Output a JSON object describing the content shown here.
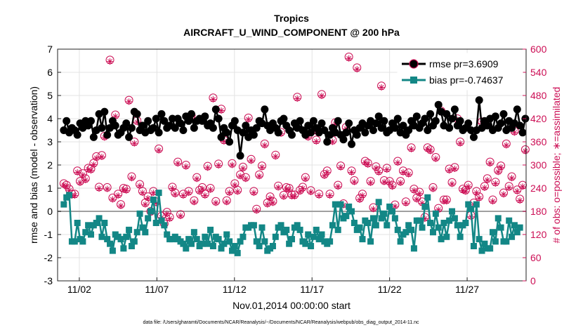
{
  "chart_data": {
    "type": "line",
    "title": "Tropics",
    "subtitle": "AIRCRAFT_U_WIND_COMPONENT @ 200 hPa",
    "xlabel": "Nov.01,2014 00:00:00 start",
    "ylabel_left": "rmse and bias (model - observation)",
    "ylabel_right": "# of obs: o=possible; ∗=assimilated",
    "ylim_left": [
      -3,
      7
    ],
    "ylim_right": [
      0,
      600
    ],
    "xlim": [
      0.6,
      30.8
    ],
    "x_tick_values": [
      2,
      7,
      12,
      17,
      22,
      27
    ],
    "x_tick_labels": [
      "11/02",
      "11/07",
      "11/12",
      "11/17",
      "11/22",
      "11/27"
    ],
    "y_left_ticks": [
      "-3",
      "-2",
      "-1",
      "0",
      "1",
      "2",
      "3",
      "4",
      "5",
      "6",
      "7"
    ],
    "y_right_ticks": [
      "0",
      "60",
      "120",
      "180",
      "240",
      "300",
      "360",
      "420",
      "480",
      "540",
      "600"
    ],
    "zero_line": 0,
    "footer": "data file: /Users/gharamti/Documents/NCAR/Reanalysis/~/Documents/NCAR/Reanalysis/webpub/obs_diag_output_2014-11.nc",
    "legend_position": "top-right",
    "legend": [
      "rmse pr=3.6909",
      "bias pr=-0.74637"
    ],
    "colors": {
      "rmse": "#000000",
      "bias": "#138786",
      "obs": "#cc0f55",
      "zero": "#a0a0a0"
    },
    "series": [
      {
        "name": "rmse pr=3.6909",
        "values": [
          3.5,
          3.9,
          3.4,
          3.6,
          3.5,
          3.3,
          3.8,
          3.6,
          3.9,
          3.7,
          3.9,
          3.2,
          3.5,
          4.2,
          3.6,
          4.3,
          3.3,
          3.6,
          3.9,
          3.7,
          3.3,
          3.4,
          3.6,
          3.8,
          3.2,
          3.6,
          4.3,
          4.2,
          3.5,
          3.7,
          3.4,
          3.9,
          3.5,
          3.6,
          4.0,
          3.4,
          4.2,
          3.9,
          3.6,
          3.7,
          4.0,
          3.6,
          4.0,
          3.8,
          3.5,
          4.1,
          3.9,
          4.2,
          3.6,
          3.9,
          4.0,
          3.9,
          4.1,
          3.7,
          3.8,
          3.6,
          4.4,
          4.0,
          3.2,
          3.6,
          3.4,
          3.0,
          3.7,
          3.9,
          3.5,
          2.4,
          3.4,
          3.7,
          3.2,
          3.5,
          3.3,
          3.6,
          3.9,
          3.8,
          4.4,
          3.7,
          3.5,
          3.8,
          3.6,
          3.4,
          3.9,
          4.0,
          3.7,
          3.5,
          3.3,
          3.8,
          3.6,
          3.9,
          3.5,
          3.3,
          3.7,
          3.4,
          3.9,
          3.6,
          3.4,
          3.8,
          3.5,
          3.0,
          3.3,
          3.6,
          3.4,
          3.9,
          3.3,
          3.1,
          3.4,
          3.8,
          2.9,
          3.5,
          3.3,
          3.6,
          3.8,
          3.4,
          3.7,
          3.9,
          3.5,
          3.8,
          4.1,
          3.6,
          3.9,
          3.4,
          3.5,
          3.8,
          3.6,
          4.0,
          3.4,
          3.7,
          3.3,
          3.5,
          3.9,
          3.7,
          4.1,
          3.6,
          3.8,
          4.0,
          3.5,
          4.2,
          3.7,
          3.9,
          4.6,
          4.3,
          3.7,
          4.2,
          3.6,
          4.0,
          4.4,
          3.7,
          3.9,
          3.5,
          3.6,
          3.8,
          3.5,
          3.2,
          3.5,
          4.8,
          3.6,
          3.9,
          3.7,
          4.0,
          3.5,
          4.1,
          3.6,
          3.8,
          4.2,
          3.5,
          3.9,
          3.6,
          3.8,
          4.4,
          3.7,
          3.4,
          4.0
        ]
      },
      {
        "name": "bias pr=-0.74637",
        "values": [
          0.3,
          0.6,
          0.7,
          -1.3,
          -1.3,
          -0.5,
          -1.2,
          -1.3,
          -0.9,
          -0.6,
          -1.0,
          -0.6,
          -0.5,
          -0.3,
          -1.1,
          -0.5,
          -1.2,
          -1.4,
          -1.7,
          -1.0,
          -1.1,
          -1.2,
          -1.6,
          -1.1,
          -0.8,
          -1.5,
          -1.3,
          -0.9,
          -0.1,
          -0.7,
          -0.9,
          -0.3,
          0.0,
          0.5,
          -0.5,
          0.8,
          -0.4,
          -0.6,
          -1.0,
          -1.2,
          -1.2,
          -1.1,
          -1.2,
          -1.3,
          -1.4,
          -1.6,
          -1.2,
          -1.4,
          -0.9,
          -1.2,
          -1.5,
          -1.4,
          -1.1,
          -1.4,
          -0.8,
          -1.5,
          -1.1,
          -1.2,
          -1.6,
          -1.4,
          -1.0,
          -1.3,
          -1.7,
          -1.5,
          -1.8,
          -1.3,
          -1.1,
          -0.7,
          -0.7,
          -0.6,
          -0.6,
          -1.3,
          -1.5,
          -0.7,
          -1.3,
          -1.7,
          -1.6,
          -1.5,
          -1.1,
          -0.7,
          -0.6,
          -0.9,
          -0.8,
          -1.4,
          -1.2,
          -0.7,
          -0.6,
          -0.8,
          -1.3,
          -1.4,
          -1.0,
          -1.5,
          -1.1,
          -0.8,
          -1.2,
          -1.0,
          -1.3,
          -1.4,
          -1.3,
          -0.6,
          0.3,
          -0.8,
          0.3,
          -0.3,
          -0.2,
          0.2,
          0.0,
          -0.5,
          -0.8,
          -0.7,
          -1.2,
          -0.4,
          -0.5,
          -1.3,
          -0.3,
          -0.6,
          0.4,
          -0.3,
          -0.1,
          -0.6,
          0.2,
          0.0,
          -0.3,
          -0.8,
          -1.3,
          -1.0,
          -0.9,
          -0.6,
          -0.8,
          -1.6,
          -0.4,
          -0.4,
          -0.7,
          0.2,
          0.6,
          -0.5,
          -0.9,
          -0.1,
          -0.7,
          -1.2,
          -0.5,
          -1.1,
          -0.4,
          0.0,
          -0.3,
          -0.6,
          -1.1,
          -0.6,
          -0.5,
          0.3,
          0.1,
          -1.5,
          0.3,
          -1.2,
          -1.7,
          -1.4,
          -1.6,
          -1.6,
          -0.9,
          -1.3,
          -0.3,
          -0.7,
          -1.3,
          -1.3,
          -0.4,
          -1.1,
          -0.6,
          -0.9,
          -0.7
        ]
      },
      {
        "name": "obs possible (o)",
        "values": [
          252,
          248,
          238,
          225,
          225,
          285,
          258,
          278,
          265,
          292,
          290,
          305,
          322,
          243,
          325,
          375,
          242,
          572,
          215,
          430,
          225,
          198,
          240,
          238,
          468,
          270,
          360,
          415,
          250,
          232,
          202,
          218,
          180,
          232,
          205,
          342,
          168,
          148,
          178,
          165,
          243,
          228,
          308,
          172,
          225,
          300,
          232,
          428,
          208,
          268,
          235,
          242,
          225,
          297,
          240,
          474,
          206,
          303,
          445,
          365,
          208,
          232,
          304,
          252,
          235,
          275,
          295,
          268,
          422,
          315,
          232,
          186,
          275,
          298,
          355,
          202,
          218,
          206,
          326,
          246,
          385,
          222,
          242,
          240,
          223,
          223,
          476,
          235,
          243,
          268,
          375,
          234,
          390,
          365,
          225,
          483,
          276,
          285,
          225,
          364,
          410,
          248,
          298,
          200,
          398,
          580,
          285,
          260,
          552,
          214,
          225,
          310,
          305,
          258,
          190,
          296,
          285,
          505,
          260,
          292,
          258,
          248,
          197,
          310,
          258,
          285,
          205,
          280,
          345,
          238,
          215,
          230,
          205,
          165,
          345,
          340,
          242,
          320,
          188,
          440,
          210,
          210,
          290,
          255,
          294,
          420,
          360,
          238,
          235,
          248,
          170,
          202,
          232,
          218,
          412,
          245,
          265,
          308,
          210,
          256,
          286,
          298,
          228,
          355,
          245,
          270,
          388,
          236,
          212,
          248,
          340
        ]
      },
      {
        "name": "obs assimilated (*)",
        "values": [
          248,
          244,
          234,
          221,
          221,
          281,
          254,
          274,
          261,
          288,
          286,
          301,
          318,
          239,
          321,
          371,
          238,
          568,
          211,
          426,
          221,
          194,
          236,
          234,
          464,
          266,
          356,
          411,
          246,
          228,
          198,
          214,
          176,
          228,
          201,
          338,
          164,
          144,
          174,
          161,
          239,
          224,
          304,
          168,
          221,
          296,
          228,
          424,
          204,
          264,
          231,
          238,
          221,
          293,
          236,
          470,
          202,
          299,
          441,
          361,
          204,
          228,
          300,
          248,
          231,
          271,
          291,
          264,
          418,
          311,
          228,
          182,
          271,
          294,
          351,
          198,
          214,
          202,
          322,
          242,
          381,
          218,
          238,
          236,
          219,
          219,
          472,
          231,
          239,
          264,
          371,
          230,
          386,
          361,
          221,
          479,
          272,
          281,
          221,
          360,
          406,
          244,
          294,
          196,
          394,
          576,
          281,
          256,
          548,
          210,
          221,
          306,
          301,
          254,
          186,
          292,
          281,
          501,
          256,
          288,
          254,
          244,
          193,
          306,
          254,
          281,
          201,
          276,
          341,
          234,
          211,
          226,
          201,
          161,
          341,
          336,
          238,
          316,
          184,
          436,
          206,
          206,
          286,
          251,
          290,
          416,
          356,
          234,
          231,
          244,
          166,
          198,
          228,
          214,
          408,
          241,
          261,
          304,
          206,
          252,
          282,
          294,
          224,
          351,
          241,
          266,
          384,
          232,
          208,
          244,
          336
        ]
      }
    ]
  }
}
